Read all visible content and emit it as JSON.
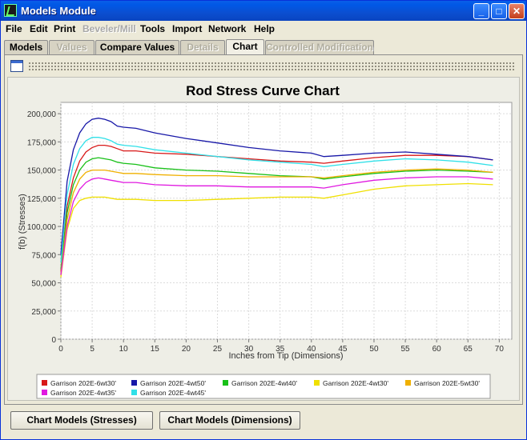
{
  "window": {
    "title": "Models Module",
    "icon": "app-icon"
  },
  "window_buttons": {
    "minimize": "_",
    "maximize": "□",
    "close": "✕"
  },
  "menu": [
    "File",
    "Edit",
    "Print",
    "Beveler/Mill",
    "Tools",
    "Import",
    "Network",
    "Help"
  ],
  "menu_disabled": [
    "Beveler/Mill"
  ],
  "tabs": [
    {
      "label": "Models",
      "state": "enabled"
    },
    {
      "label": "Values",
      "state": "disabled"
    },
    {
      "label": "Compare Values",
      "state": "enabled"
    },
    {
      "label": "Details",
      "state": "disabled"
    },
    {
      "label": "Chart",
      "state": "selected"
    },
    {
      "label": "Controlled Modification",
      "state": "disabled"
    }
  ],
  "buttons": {
    "chart_stresses": "Chart Models (Stresses)",
    "chart_dimensions": "Chart Models (Dimensions)"
  },
  "chart_data": {
    "type": "line",
    "title": "Rod Stress Curve Chart",
    "xlabel": "Inches from Tip (Dimensions)",
    "ylabel": "f(b) (Stresses)",
    "xlim": [
      0,
      72
    ],
    "ylim": [
      0,
      210000
    ],
    "x_ticks": [
      "0",
      "5",
      "10",
      "15",
      "20",
      "25",
      "30",
      "35",
      "40",
      "45",
      "50",
      "55",
      "60",
      "65",
      "70"
    ],
    "y_ticks": [
      "0",
      "25,000",
      "50,000",
      "75,000",
      "100,000",
      "125,000",
      "150,000",
      "175,000",
      "200,000"
    ],
    "grid": true,
    "legend_position": "bottom",
    "x": [
      0,
      1,
      2,
      3,
      4,
      5,
      6,
      7,
      8,
      9,
      10,
      12,
      15,
      20,
      25,
      30,
      35,
      40,
      42,
      45,
      50,
      55,
      60,
      65,
      69
    ],
    "series": [
      {
        "name": "Garrison 202E-6wt30'",
        "color": "#d81818",
        "values": [
          60000,
          118000,
          143000,
          158000,
          166000,
          170000,
          172000,
          172000,
          171000,
          169000,
          167000,
          167000,
          165000,
          164000,
          162000,
          160000,
          158000,
          157000,
          156000,
          158000,
          161000,
          163000,
          163000,
          162000,
          159000
        ]
      },
      {
        "name": "Garrison 202E-4wt50'",
        "color": "#1818a8",
        "values": [
          75000,
          140000,
          168000,
          183000,
          191000,
          195000,
          196000,
          195000,
          193000,
          189000,
          188000,
          187000,
          183000,
          178000,
          174000,
          170000,
          167000,
          165000,
          162000,
          163000,
          165000,
          166000,
          164000,
          162000,
          159000
        ]
      },
      {
        "name": "Garrison 202E-4wt40'",
        "color": "#18c018",
        "values": [
          62000,
          112000,
          137000,
          150000,
          157000,
          160000,
          161000,
          160000,
          159000,
          157000,
          156000,
          155000,
          152000,
          150000,
          149000,
          147000,
          145000,
          144000,
          142000,
          144000,
          147000,
          149000,
          150000,
          149000,
          148000
        ]
      },
      {
        "name": "Garrison 202E-4wt30'",
        "color": "#f0e000",
        "values": [
          55000,
          97000,
          116000,
          123000,
          125000,
          126000,
          126000,
          126000,
          125000,
          124000,
          124000,
          124000,
          123000,
          123000,
          124000,
          125000,
          126000,
          126000,
          125000,
          128000,
          133000,
          136000,
          137000,
          138000,
          137000
        ]
      },
      {
        "name": "Garrison 202E-5wt30'",
        "color": "#f0b000",
        "values": [
          58000,
          106000,
          130000,
          142000,
          148000,
          150000,
          150000,
          150000,
          149000,
          148000,
          147000,
          147000,
          146000,
          145000,
          145000,
          144000,
          144000,
          144000,
          143000,
          145000,
          148000,
          150000,
          151000,
          150000,
          148000
        ]
      },
      {
        "name": "Garrison 202E-4wt35'",
        "color": "#e018e0",
        "values": [
          57000,
          100000,
          122000,
          133000,
          139000,
          142000,
          143000,
          142000,
          141000,
          140000,
          139000,
          139000,
          137000,
          136000,
          136000,
          135000,
          135000,
          135000,
          134000,
          137000,
          141000,
          143000,
          144000,
          144000,
          142000
        ]
      },
      {
        "name": "Garrison 202E-4wt45'",
        "color": "#30e0e8",
        "values": [
          68000,
          128000,
          155000,
          169000,
          176000,
          179000,
          179000,
          178000,
          176000,
          173000,
          172000,
          171000,
          168000,
          165000,
          162000,
          159000,
          157000,
          155000,
          153000,
          155000,
          158000,
          160000,
          159000,
          157000,
          154000
        ]
      }
    ]
  }
}
